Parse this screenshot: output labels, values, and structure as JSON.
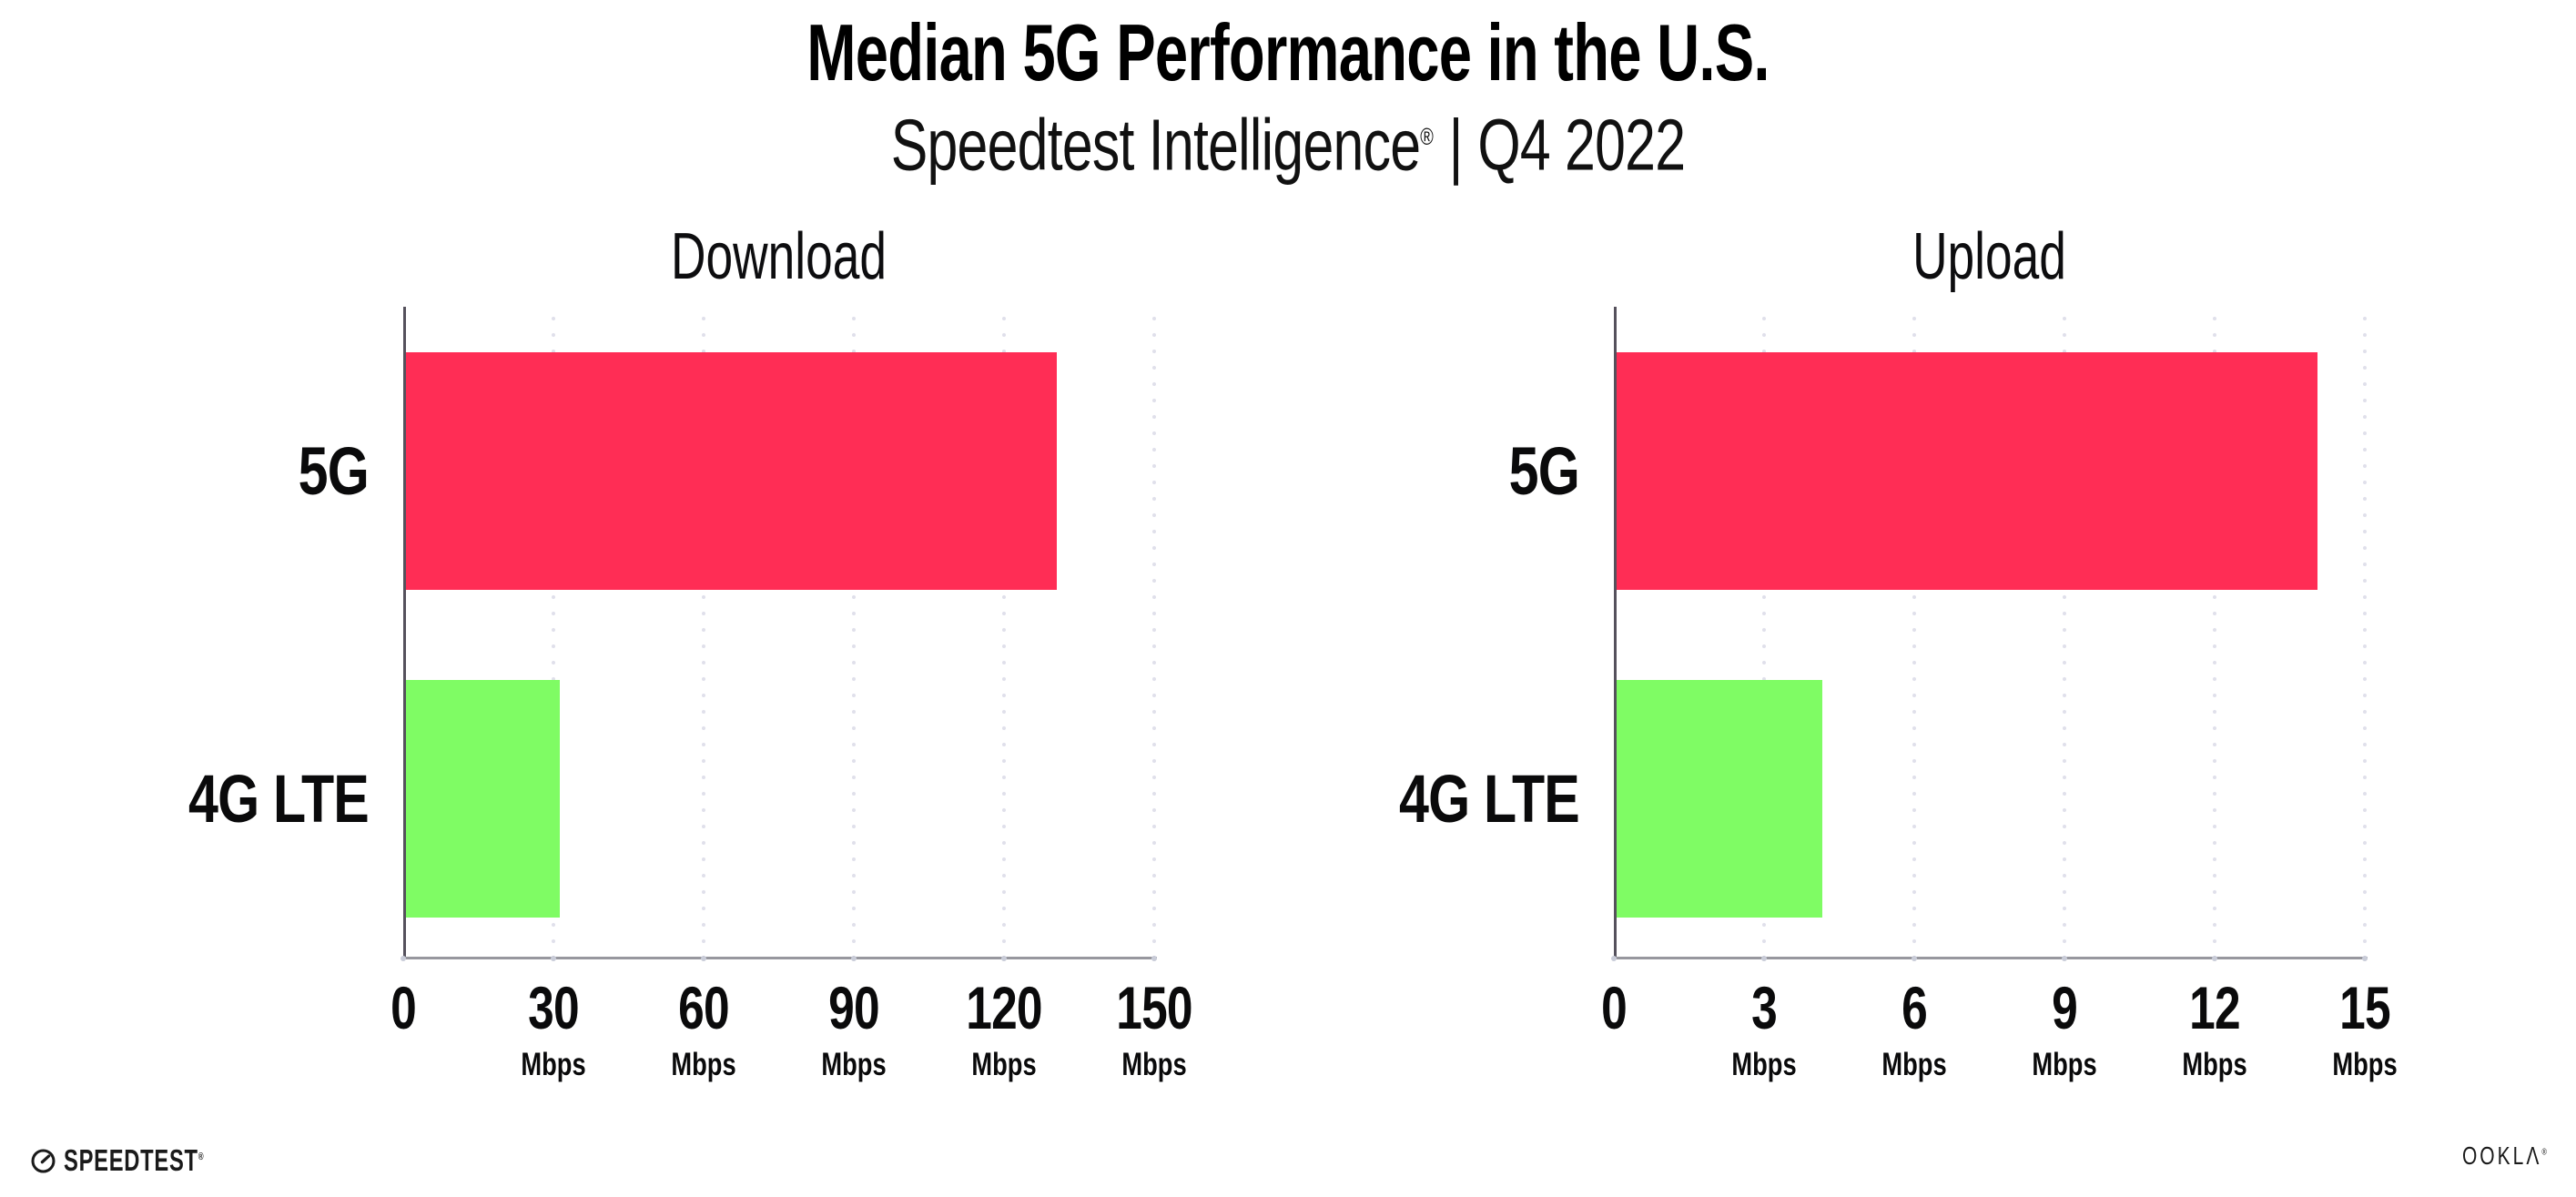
{
  "header": {
    "title": "Median 5G Performance in the U.S.",
    "subtitle": {
      "brand": "Speedtest Intelligence",
      "registered": "®",
      "separator": "|",
      "period": "Q4 2022"
    }
  },
  "chart_data": [
    {
      "type": "bar",
      "orientation": "horizontal",
      "title": "Download",
      "categories": [
        "5G",
        "4G LTE"
      ],
      "values": [
        130,
        30.7
      ],
      "unit": "Mbps",
      "xlim": [
        0,
        150
      ],
      "xticks": [
        0,
        30,
        60,
        90,
        120,
        150
      ],
      "grid": "vertical-dotted",
      "legend": "none",
      "bar_colors": [
        "#FF2D55",
        "#7FFC64"
      ]
    },
    {
      "type": "bar",
      "orientation": "horizontal",
      "title": "Upload",
      "categories": [
        "5G",
        "4G LTE"
      ],
      "values": [
        14,
        4.1
      ],
      "unit": "Mbps",
      "xlim": [
        0,
        15
      ],
      "xticks": [
        0,
        3,
        6,
        9,
        12,
        15
      ],
      "grid": "vertical-dotted",
      "legend": "none",
      "bar_colors": [
        "#FF2D55",
        "#7FFC64"
      ]
    }
  ],
  "footer": {
    "speedtest": {
      "label": "SPEEDTEST",
      "trademark": "®"
    },
    "ookla": {
      "label": "OOKLΛ",
      "registered": "®"
    }
  },
  "colors": {
    "bar_5g": "#FF2D55",
    "bar_4g_lte": "#7FFC64",
    "grid_dot": "#E0E0EB",
    "axis_x": "#97979E",
    "axis_y": "#55515C",
    "text": "#0B0B0C"
  }
}
